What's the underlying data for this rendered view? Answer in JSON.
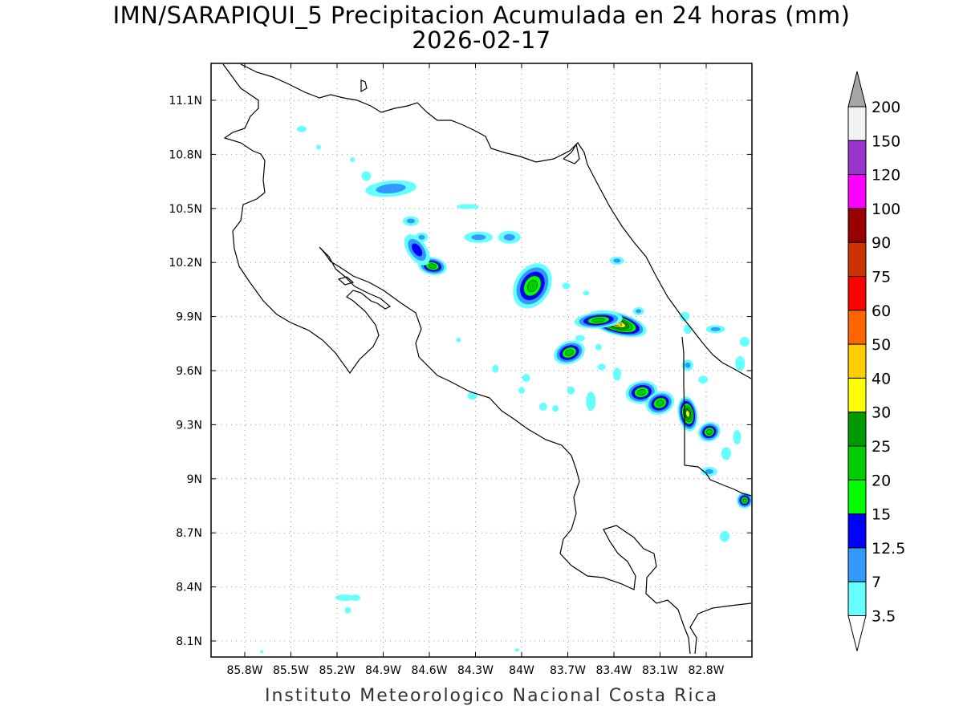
{
  "title": "IMN/SARAPIQUI_5 Precipitacion Acumulada en 24 horas (mm)",
  "date": "2026-02-17",
  "footer": "Instituto Meteorologico Nacional Costa Rica",
  "lon_labels": [
    "85.8W",
    "85.5W",
    "85.2W",
    "84.9W",
    "84.6W",
    "84.3W",
    "84W",
    "83.7W",
    "83.4W",
    "83.1W",
    "82.8W"
  ],
  "lat_labels": [
    "11.1N",
    "10.8N",
    "10.5N",
    "10.2N",
    "9.9N",
    "9.6N",
    "9.3N",
    "9N",
    "8.7N",
    "8.4N",
    "8.1N"
  ],
  "legend": {
    "levels": [
      "3.5",
      "7",
      "12.5",
      "15",
      "20",
      "25",
      "30",
      "40",
      "50",
      "60",
      "75",
      "90",
      "100",
      "120",
      "150",
      "200"
    ],
    "colors": [
      "#66ffff",
      "#3399ff",
      "#0000ff",
      "#00ff00",
      "#00cc00",
      "#009900",
      "#ffff00",
      "#ffcc00",
      "#ff6600",
      "#ff0000",
      "#cc3300",
      "#990000",
      "#ff00ff",
      "#9933cc",
      "#f2f2f2",
      "#a6a6a6",
      "#ffffff"
    ]
  },
  "cells": [
    {
      "lon": -84.85,
      "lat": 10.61,
      "peak": "7"
    },
    {
      "lon": -84.58,
      "lat": 10.18,
      "peak": "20"
    },
    {
      "lon": -84.68,
      "lat": 10.27,
      "peak": "12.5"
    },
    {
      "lon": -83.93,
      "lat": 10.07,
      "peak": "20"
    },
    {
      "lon": -83.38,
      "lat": 9.86,
      "peak": "40"
    },
    {
      "lon": -83.5,
      "lat": 9.88,
      "peak": "20"
    },
    {
      "lon": -83.69,
      "lat": 9.7,
      "peak": "20"
    },
    {
      "lon": -83.22,
      "lat": 9.48,
      "peak": "20"
    },
    {
      "lon": -83.1,
      "lat": 9.42,
      "peak": "20"
    },
    {
      "lon": -82.92,
      "lat": 9.36,
      "peak": "30"
    },
    {
      "lon": -82.78,
      "lat": 9.26,
      "peak": "20"
    },
    {
      "lon": -82.55,
      "lat": 8.88,
      "peak": "20"
    }
  ]
}
